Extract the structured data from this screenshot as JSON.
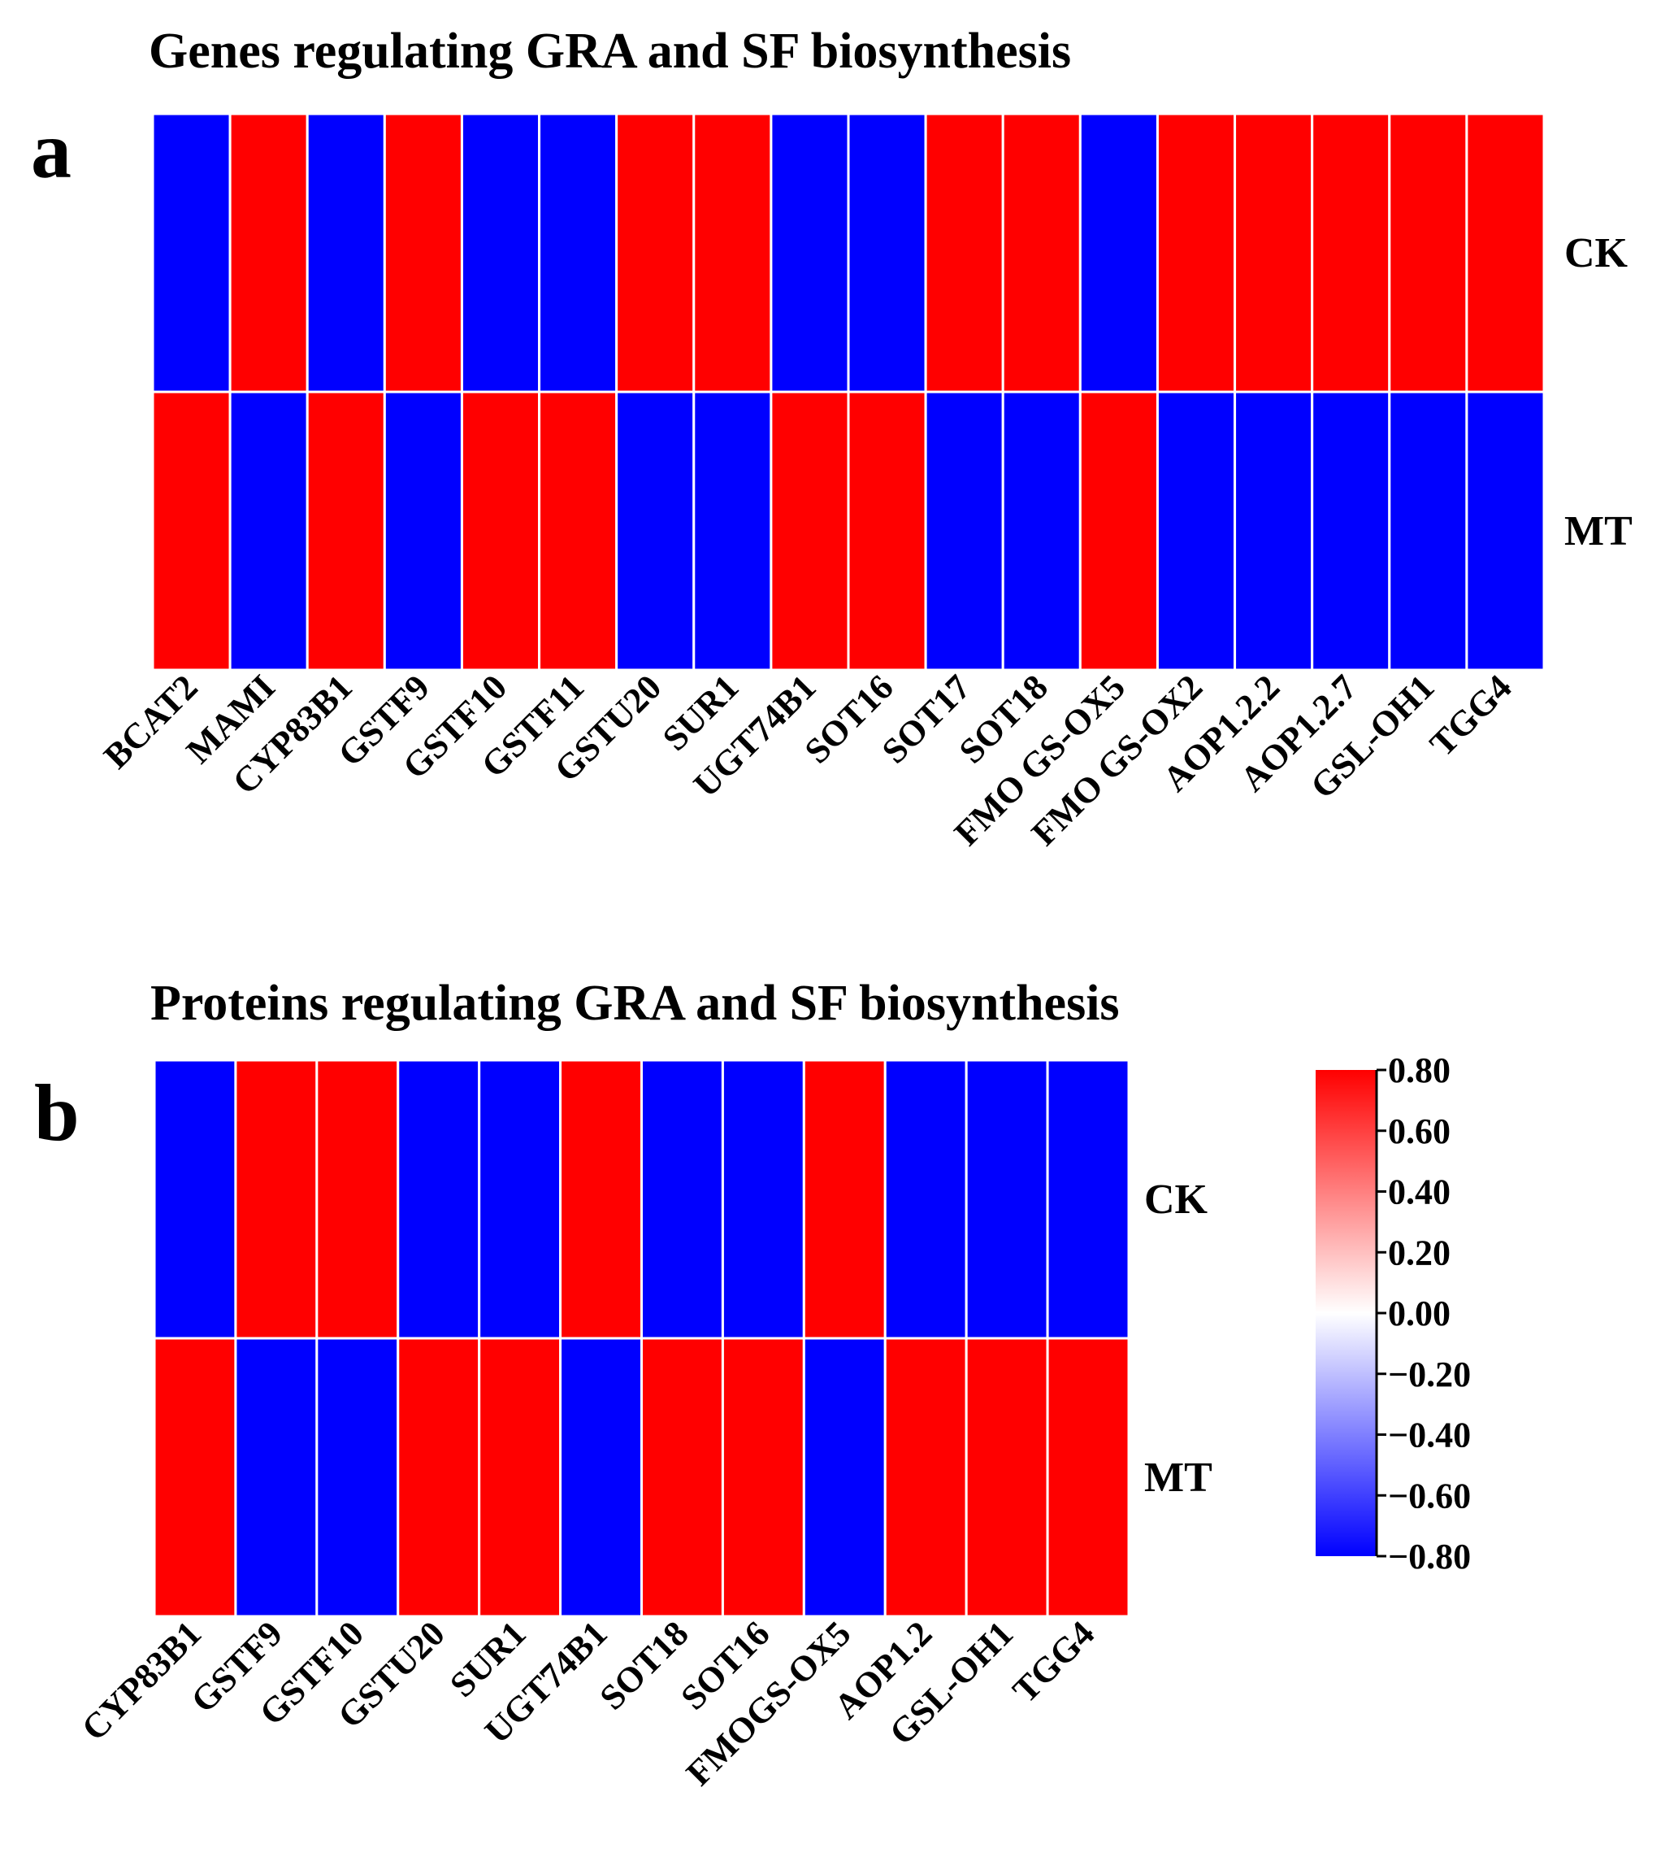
{
  "chart_data": [
    {
      "type": "heatmap",
      "panel": "a",
      "title": "Genes regulating GRA and SF biosynthesis",
      "columns": [
        "BCAT2",
        "MAMI",
        "CYP83B1",
        "GSTF9",
        "GSTF10",
        "GSTF11",
        "GSTU20",
        "SUR1",
        "UGT74B1",
        "SOT16",
        "SOT17",
        "SOT18",
        "FMO GS-OX5",
        "FMO GS-OX2",
        "AOP1.2.2",
        "AOP1.2.7",
        "GSL-OH1",
        "TGG4"
      ],
      "rows": [
        "CK",
        "MT"
      ],
      "values": [
        [
          -0.8,
          0.8,
          -0.8,
          0.8,
          -0.8,
          -0.8,
          0.8,
          0.8,
          -0.8,
          -0.8,
          0.8,
          0.8,
          -0.8,
          0.8,
          0.8,
          0.8,
          0.8,
          0.8
        ],
        [
          0.8,
          -0.8,
          0.8,
          -0.8,
          0.8,
          0.8,
          -0.8,
          -0.8,
          0.8,
          0.8,
          -0.8,
          -0.8,
          0.8,
          -0.8,
          -0.8,
          -0.8,
          -0.8,
          -0.8
        ]
      ]
    },
    {
      "type": "heatmap",
      "panel": "b",
      "title": "Proteins regulating GRA and SF biosynthesis",
      "columns": [
        "CYP83B1",
        "GSTF9",
        "GSTF10",
        "GSTU20",
        "SUR1",
        "UGT74B1",
        "SOT18",
        "SOT16",
        "FMOGS-OX5",
        "AOP1.2",
        "GSL-OH1",
        "TGG4"
      ],
      "rows": [
        "CK",
        "MT"
      ],
      "values": [
        [
          -0.8,
          0.8,
          0.8,
          -0.8,
          -0.8,
          0.8,
          -0.8,
          -0.8,
          0.8,
          -0.8,
          -0.8,
          -0.8
        ],
        [
          0.8,
          -0.8,
          -0.8,
          0.8,
          0.8,
          -0.8,
          0.8,
          0.8,
          -0.8,
          0.8,
          0.8,
          0.8
        ]
      ]
    }
  ],
  "colorbar": {
    "min": -0.8,
    "max": 0.8,
    "ticks": [
      "0.80",
      "0.60",
      "0.40",
      "0.20",
      "0.00",
      "−0.20",
      "−0.40",
      "−0.60",
      "−0.80"
    ],
    "colors": {
      "high": "#ff0000",
      "mid": "#ffffff",
      "low": "#0000ff"
    }
  },
  "colors": {
    "background": "#ffffff",
    "cell_border": "#ffffff",
    "text": "#000000"
  }
}
